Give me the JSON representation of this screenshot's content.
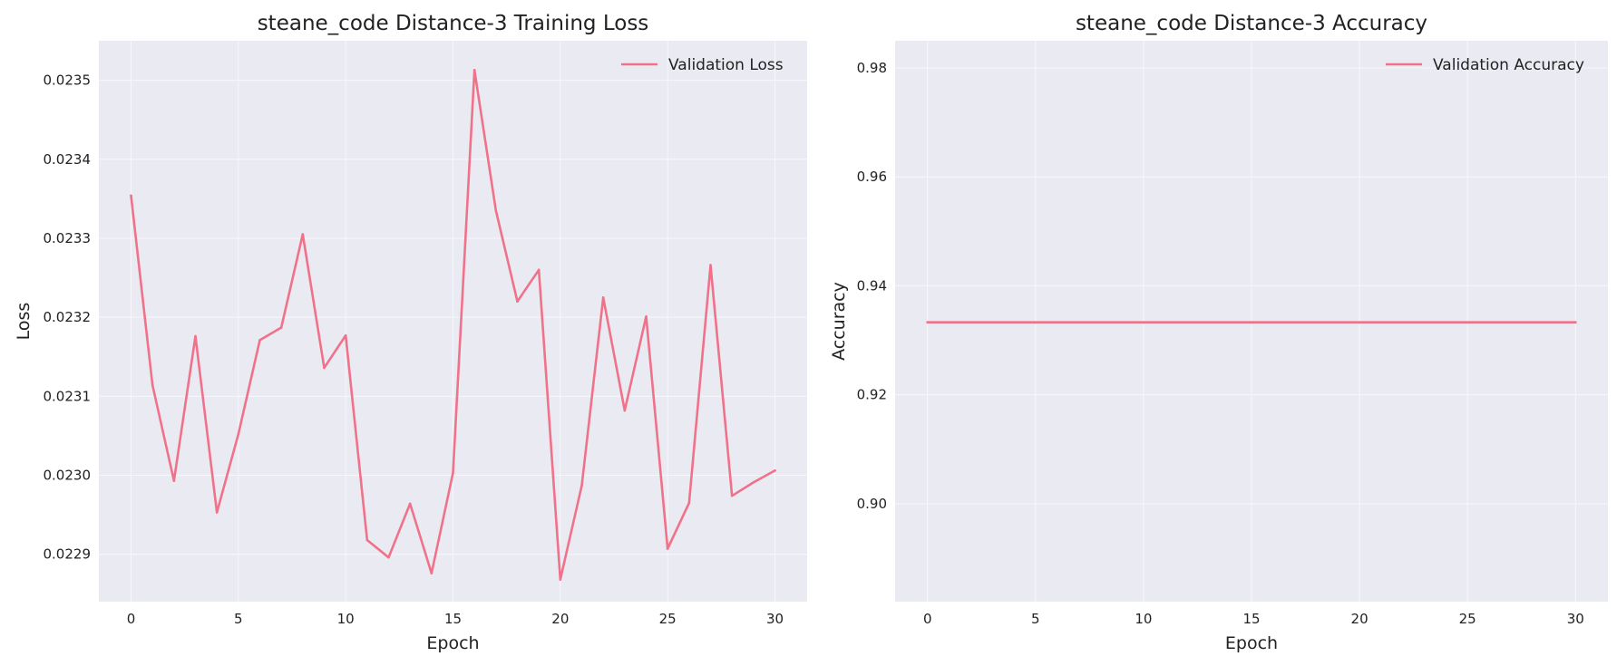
{
  "chart_data": [
    {
      "type": "line",
      "title": "steane_code Distance-3 Training Loss",
      "xlabel": "Epoch",
      "ylabel": "Loss",
      "xlim": [
        -1.5,
        31.5
      ],
      "ylim": [
        0.02284,
        0.02355
      ],
      "xticks": [
        0,
        5,
        10,
        15,
        20,
        25,
        30
      ],
      "yticks": [
        0.0229,
        0.023,
        0.0231,
        0.0232,
        0.0233,
        0.0234,
        0.0235
      ],
      "ytick_labels": [
        "0.0229",
        "0.0230",
        "0.0231",
        "0.0232",
        "0.0233",
        "0.0234",
        "0.0235"
      ],
      "grid": true,
      "legend_position": "top-right",
      "series": [
        {
          "name": "Validation Loss",
          "color": "#f0728a",
          "x": [
            0,
            1,
            2,
            3,
            4,
            5,
            6,
            7,
            8,
            9,
            10,
            11,
            12,
            13,
            14,
            15,
            16,
            17,
            18,
            19,
            20,
            21,
            22,
            23,
            24,
            25,
            26,
            27,
            28,
            29,
            30
          ],
          "y": [
            0.023354,
            0.023114,
            0.022993,
            0.023176,
            0.022953,
            0.023052,
            0.023171,
            0.023187,
            0.023305,
            0.023136,
            0.023177,
            0.022918,
            0.022896,
            0.022964,
            0.022876,
            0.023003,
            0.023513,
            0.023335,
            0.02322,
            0.02326,
            0.022868,
            0.022987,
            0.023225,
            0.023082,
            0.023201,
            0.022907,
            0.022965,
            0.023266,
            0.022974,
            0.022991,
            0.023006
          ]
        }
      ]
    },
    {
      "type": "line",
      "title": "steane_code Distance-3 Accuracy",
      "xlabel": "Epoch",
      "ylabel": "Accuracy",
      "xlim": [
        -1.5,
        31.5
      ],
      "ylim": [
        0.882,
        0.985
      ],
      "xticks": [
        0,
        5,
        10,
        15,
        20,
        25,
        30
      ],
      "yticks": [
        0.9,
        0.92,
        0.94,
        0.96,
        0.98
      ],
      "ytick_labels": [
        "0.90",
        "0.92",
        "0.94",
        "0.96",
        "0.98"
      ],
      "grid": true,
      "legend_position": "top-right",
      "series": [
        {
          "name": "Validation Accuracy",
          "color": "#f0728a",
          "x": [
            0,
            1,
            2,
            3,
            4,
            5,
            6,
            7,
            8,
            9,
            10,
            11,
            12,
            13,
            14,
            15,
            16,
            17,
            18,
            19,
            20,
            21,
            22,
            23,
            24,
            25,
            26,
            27,
            28,
            29,
            30
          ],
          "y": [
            0.9333,
            0.9333,
            0.9333,
            0.9333,
            0.9333,
            0.9333,
            0.9333,
            0.9333,
            0.9333,
            0.9333,
            0.9333,
            0.9333,
            0.9333,
            0.9333,
            0.9333,
            0.9333,
            0.9333,
            0.9333,
            0.9333,
            0.9333,
            0.9333,
            0.9333,
            0.9333,
            0.9333,
            0.9333,
            0.9333,
            0.9333,
            0.9333,
            0.9333,
            0.9333,
            0.9333
          ]
        }
      ]
    }
  ],
  "colors": {
    "axes_background": "#eaeaf2",
    "grid": "#f7f7fb",
    "text": "#222222",
    "figure_background": "#ffffff"
  }
}
